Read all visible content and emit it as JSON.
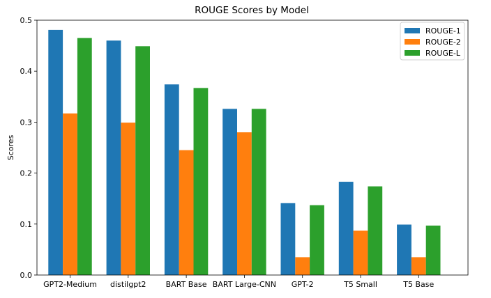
{
  "chart_data": {
    "type": "bar",
    "title": "ROUGE Scores by Model",
    "xlabel": "",
    "ylabel": "Scores",
    "ylim": [
      0,
      0.5
    ],
    "yticks": [
      "0.0",
      "0.1",
      "0.2",
      "0.3",
      "0.4",
      "0.5"
    ],
    "grid": false,
    "legend_position": "top-right",
    "categories": [
      "GPT2-Medium",
      "distilgpt2",
      "BART Base",
      "BART Large-CNN",
      "GPT-2",
      "T5 Small",
      "T5 Base"
    ],
    "series": [
      {
        "name": "ROUGE-1",
        "color": "#1f77b4",
        "values": [
          0.481,
          0.46,
          0.374,
          0.326,
          0.141,
          0.183,
          0.099
        ]
      },
      {
        "name": "ROUGE-2",
        "color": "#ff7f0e",
        "values": [
          0.317,
          0.299,
          0.245,
          0.28,
          0.035,
          0.087,
          0.035
        ]
      },
      {
        "name": "ROUGE-L",
        "color": "#2ca02c",
        "values": [
          0.465,
          0.449,
          0.367,
          0.326,
          0.137,
          0.174,
          0.097
        ]
      }
    ]
  }
}
